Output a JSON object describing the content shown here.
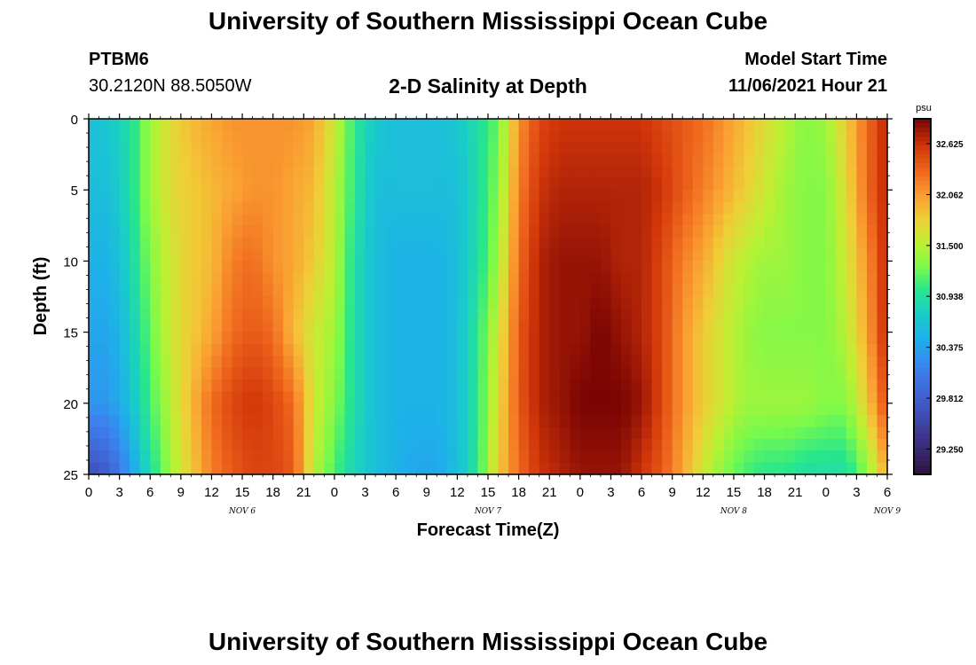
{
  "header": {
    "title": "University of Southern Mississippi Ocean Cube",
    "station_id": "PTBM6",
    "station_location": "30.2120N  88.5050W",
    "chart_title": "2-D Salinity at Depth",
    "model_start_label": "Model Start Time",
    "model_start_value": "11/06/2021 Hour 21"
  },
  "footer": {
    "title": "University of Southern Mississippi Ocean Cube"
  },
  "chart_data": {
    "type": "heatmap",
    "title": "2-D Salinity at Depth",
    "xlabel": "Forecast Time(Z)",
    "ylabel": "Depth (ft)",
    "colorbar_unit": "psu",
    "x_tick_labels": [
      "0",
      "3",
      "6",
      "9",
      "12",
      "15",
      "18",
      "21",
      "0",
      "3",
      "6",
      "9",
      "12",
      "15",
      "18",
      "21",
      "0",
      "3",
      "6",
      "9",
      "12",
      "15",
      "18",
      "21",
      "0",
      "3",
      "6"
    ],
    "day_labels": [
      "NOV 6",
      "NOV 7",
      "NOV 8",
      "NOV 9"
    ],
    "day_label_hours": [
      15,
      39,
      63,
      78
    ],
    "x_range_hours": [
      0,
      78
    ],
    "y_ticks": [
      0,
      5,
      10,
      15,
      20,
      25
    ],
    "y_range": [
      0,
      25
    ],
    "color_range": [
      28.97,
      32.9
    ],
    "colorbar_ticks": [
      29.25,
      29.812,
      30.375,
      30.938,
      31.5,
      32.062,
      32.625
    ],
    "colorbar_tick_labels": [
      "29.250",
      "29.812",
      "30.375",
      "30.938",
      "31.500",
      "32.062",
      "32.625"
    ],
    "depths": [
      0,
      5,
      10,
      15,
      20,
      25
    ],
    "hours": [
      0,
      2,
      4,
      6,
      8,
      10,
      12,
      14,
      16,
      18,
      20,
      22,
      24,
      26,
      28,
      30,
      32,
      34,
      36,
      38,
      40,
      42,
      44,
      46,
      48,
      50,
      52,
      54,
      56,
      58,
      60,
      62,
      64,
      66,
      68,
      70,
      72,
      74,
      76,
      78
    ],
    "salinity_by_depth": [
      [
        30.6,
        30.7,
        30.9,
        31.4,
        31.7,
        31.9,
        32.0,
        32.1,
        32.1,
        32.1,
        32.1,
        32.0,
        31.6,
        31.0,
        30.7,
        30.6,
        30.6,
        30.6,
        30.7,
        30.9,
        31.2,
        32.1,
        32.5,
        32.6,
        32.6,
        32.6,
        32.6,
        32.6,
        32.5,
        32.4,
        32.3,
        32.1,
        31.9,
        31.7,
        31.5,
        31.3,
        31.4,
        31.8,
        32.3,
        32.7
      ],
      [
        30.6,
        30.6,
        30.9,
        31.4,
        31.7,
        31.8,
        31.9,
        32.0,
        32.1,
        32.1,
        32.0,
        31.9,
        31.5,
        31.0,
        30.6,
        30.6,
        30.6,
        30.6,
        30.6,
        30.9,
        31.3,
        32.2,
        32.6,
        32.7,
        32.7,
        32.7,
        32.7,
        32.7,
        32.6,
        32.4,
        32.2,
        32.0,
        31.8,
        31.6,
        31.4,
        31.3,
        31.3,
        31.7,
        32.3,
        32.7
      ],
      [
        30.5,
        30.5,
        30.8,
        31.3,
        31.6,
        31.8,
        31.9,
        32.2,
        32.3,
        32.1,
        32.0,
        31.8,
        31.5,
        30.9,
        30.6,
        30.5,
        30.5,
        30.5,
        30.6,
        30.9,
        31.4,
        32.3,
        32.7,
        32.8,
        32.8,
        32.8,
        32.7,
        32.7,
        32.5,
        32.2,
        32.0,
        31.7,
        31.5,
        31.4,
        31.4,
        31.3,
        31.3,
        31.6,
        32.1,
        32.7
      ],
      [
        30.4,
        30.4,
        30.7,
        31.2,
        31.6,
        31.8,
        32.0,
        32.3,
        32.4,
        32.3,
        31.9,
        31.6,
        31.4,
        30.9,
        30.6,
        30.5,
        30.5,
        30.5,
        30.6,
        31.0,
        31.6,
        32.4,
        32.7,
        32.8,
        32.8,
        32.9,
        32.8,
        32.7,
        32.5,
        32.1,
        31.8,
        31.6,
        31.4,
        31.3,
        31.3,
        31.3,
        31.3,
        31.5,
        32.0,
        32.7
      ],
      [
        30.3,
        30.3,
        30.6,
        31.1,
        31.5,
        31.9,
        32.3,
        32.5,
        32.6,
        32.5,
        32.3,
        31.6,
        31.3,
        30.9,
        30.6,
        30.5,
        30.5,
        30.5,
        30.6,
        31.0,
        31.7,
        32.4,
        32.7,
        32.8,
        32.9,
        32.9,
        32.9,
        32.8,
        32.5,
        32.1,
        31.8,
        31.6,
        31.4,
        31.4,
        31.4,
        31.4,
        31.3,
        31.3,
        31.8,
        32.5
      ],
      [
        29.6,
        29.8,
        30.3,
        30.9,
        31.4,
        31.8,
        32.2,
        32.4,
        32.5,
        32.5,
        32.4,
        31.5,
        31.1,
        30.8,
        30.6,
        30.5,
        30.4,
        30.4,
        30.6,
        31.0,
        31.8,
        32.3,
        32.6,
        32.7,
        32.8,
        32.8,
        32.8,
        32.6,
        32.4,
        32.0,
        31.6,
        31.3,
        31.1,
        31.0,
        31.0,
        30.9,
        30.9,
        30.9,
        31.3,
        32.0
      ]
    ]
  }
}
